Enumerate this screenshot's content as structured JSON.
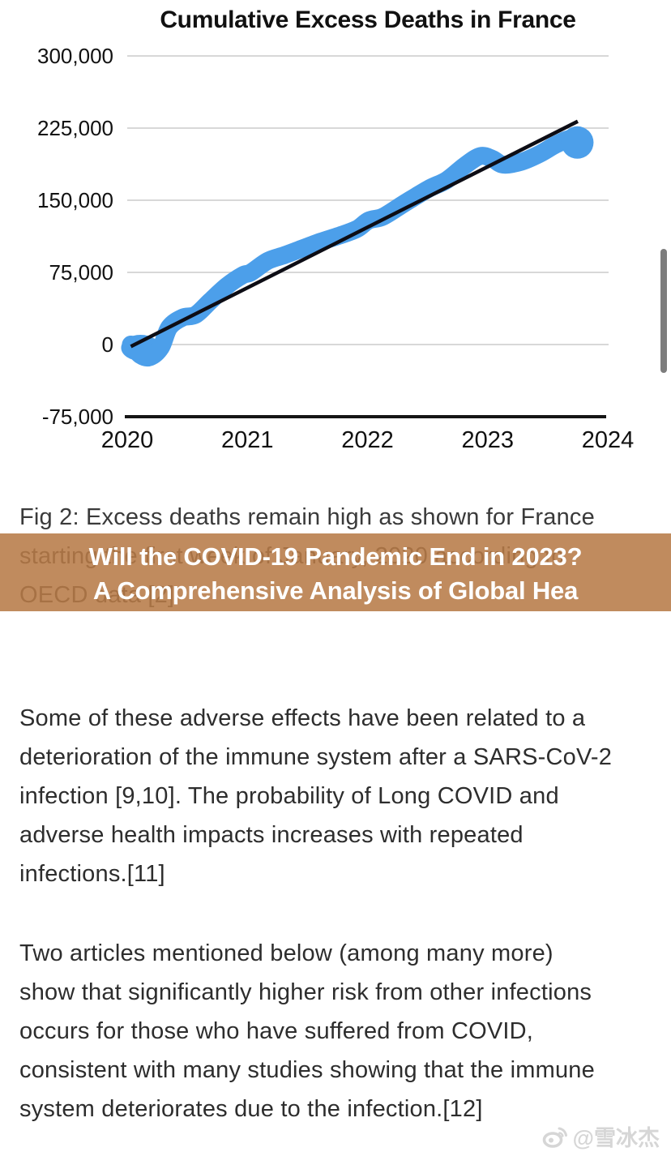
{
  "chart": {
    "title": "Cumulative Excess Deaths in France",
    "y_tick_labels": [
      "300,000",
      "225,000",
      "150,000",
      "75,000",
      "0",
      "-75,000"
    ],
    "x_tick_labels": [
      "2020",
      "2021",
      "2022",
      "2023",
      "2024"
    ]
  },
  "chart_data": {
    "type": "line",
    "title": "Cumulative Excess Deaths in France",
    "xlabel": "",
    "ylabel": "",
    "x_range": [
      2020,
      2024
    ],
    "y_range": [
      -75000,
      300000
    ],
    "x_ticks": [
      2020,
      2021,
      2022,
      2023,
      2024
    ],
    "y_ticks": [
      300000,
      225000,
      150000,
      75000,
      0,
      -75000
    ],
    "grid": "horizontal-only",
    "legend": "none",
    "series": [
      {
        "name": "Cumulative excess deaths (weekly, OECD)",
        "style": "thick-band",
        "color": "#4C9FEA",
        "points": [
          [
            2020.02,
            0
          ],
          [
            2020.1,
            -11000
          ],
          [
            2020.18,
            -13000
          ],
          [
            2020.27,
            -3000
          ],
          [
            2020.34,
            18000
          ],
          [
            2020.45,
            28000
          ],
          [
            2020.56,
            31000
          ],
          [
            2020.68,
            45000
          ],
          [
            2020.82,
            61000
          ],
          [
            2020.95,
            72000
          ],
          [
            2021.02,
            75000
          ],
          [
            2021.16,
            87000
          ],
          [
            2021.3,
            93000
          ],
          [
            2021.45,
            100000
          ],
          [
            2021.6,
            107000
          ],
          [
            2021.75,
            113000
          ],
          [
            2021.9,
            120000
          ],
          [
            2022.0,
            129000
          ],
          [
            2022.12,
            133000
          ],
          [
            2022.3,
            147000
          ],
          [
            2022.5,
            162000
          ],
          [
            2022.65,
            171000
          ],
          [
            2022.8,
            186000
          ],
          [
            2022.93,
            196000
          ],
          [
            2023.03,
            193000
          ],
          [
            2023.12,
            187000
          ],
          [
            2023.27,
            190000
          ],
          [
            2023.42,
            198000
          ],
          [
            2023.56,
            208000
          ],
          [
            2023.68,
            214000
          ],
          [
            2023.75,
            210000
          ]
        ]
      },
      {
        "name": "Linear trend",
        "style": "line",
        "color": "#0D0D15",
        "points": [
          [
            2020.02,
            -2000
          ],
          [
            2023.74,
            232000
          ]
        ]
      }
    ]
  },
  "caption": {
    "text": "Fig 2: Excess deaths remain high as shown for France starting the first week of January, 2020 according to OECD data [2]",
    "lines": [
      "Fig 2: Excess deaths remain high as shown for France",
      "starting the first week of January, 2020 according to",
      "OECD data [2]"
    ]
  },
  "banner": {
    "lines": [
      "Will the COVID-19 Pandemic End in 2023?",
      "A Comprehensive Analysis of Global Hea"
    ]
  },
  "paragraphs": [
    {
      "text": "Some of these adverse effects have been related to a deterioration of the immune system after a SARS-CoV-2 infection [9,10]. The probability of Long COVID and adverse health impacts increases with repeated infections.[11]",
      "lines": [
        "Some of these adverse effects have been related to a",
        "deterioration of the immune system after a SARS-CoV-2",
        "infection [9,10]. The probability of Long COVID and",
        "adverse health impacts increases with repeated",
        "infections.[11]"
      ]
    },
    {
      "text": "Two articles mentioned below (among many more) show that significantly higher risk from other infections occurs for those who have suffered from COVID, consistent with many studies showing that the immune system deteriorates due to the infection.[12]",
      "lines": [
        "Two articles mentioned below (among many more)",
        "show that significantly higher risk from other infections",
        "occurs for those who have suffered from COVID,",
        "consistent with many studies showing that the immune",
        "system deteriorates due to the infection.[12]"
      ]
    }
  ],
  "watermark": {
    "handle": "@雪冰杰",
    "icon": "weibo-icon"
  },
  "colors": {
    "band_blue": "#4C9FEA",
    "trend_black": "#0D0D15",
    "gridline": "#D8D8D8",
    "axis": "#151515",
    "banner_bg": "#C08B5E",
    "banner_text": "#FFFFFF",
    "body_text": "#2D2D2D",
    "scrollbar": "#7D7D7D"
  }
}
